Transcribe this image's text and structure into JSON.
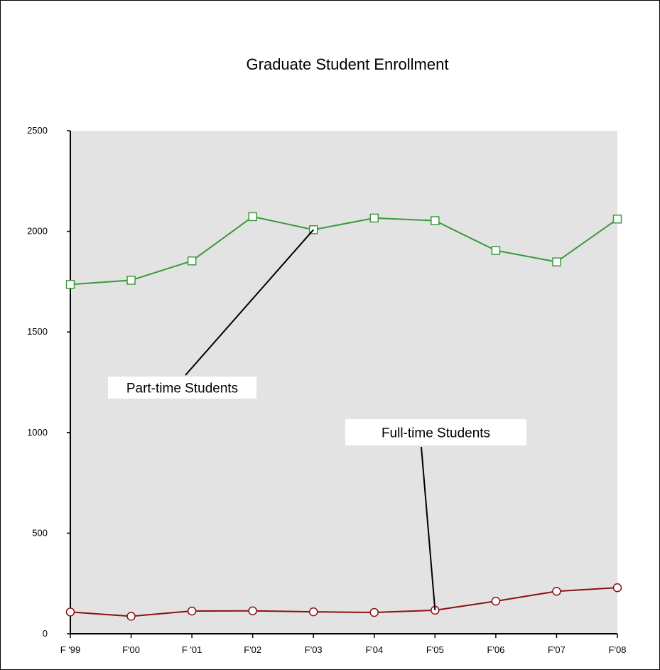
{
  "chart_data": {
    "type": "line",
    "title": "Graduate Student Enrollment",
    "xlabel": "",
    "ylabel": "",
    "categories": [
      "F '99",
      "F'00",
      "F '01",
      "F'02",
      "F'03",
      "F'04",
      "F'05",
      "F'06",
      "F'07",
      "F'08"
    ],
    "ylim": [
      0,
      2500
    ],
    "yticks": [
      0,
      500,
      1000,
      1500,
      2000,
      2500
    ],
    "grid": false,
    "legend": "none",
    "series": [
      {
        "name": "Part-time Students",
        "values": [
          1736,
          1757,
          1853,
          2073,
          2008,
          2066,
          2053,
          1905,
          1848,
          2061
        ],
        "color": "#3a9a3a",
        "marker": "square"
      },
      {
        "name": "Full-time Students",
        "values": [
          108,
          87,
          113,
          114,
          109,
          106,
          117,
          162,
          211,
          229
        ],
        "color": "#8b1010",
        "marker": "circle"
      }
    ],
    "annotations": [
      {
        "text": "Part-time Students",
        "series": 0,
        "point_index": 4
      },
      {
        "text": "Full-time Students",
        "series": 1,
        "point_index": 6
      }
    ],
    "plot_background": "#e3e3e3"
  }
}
